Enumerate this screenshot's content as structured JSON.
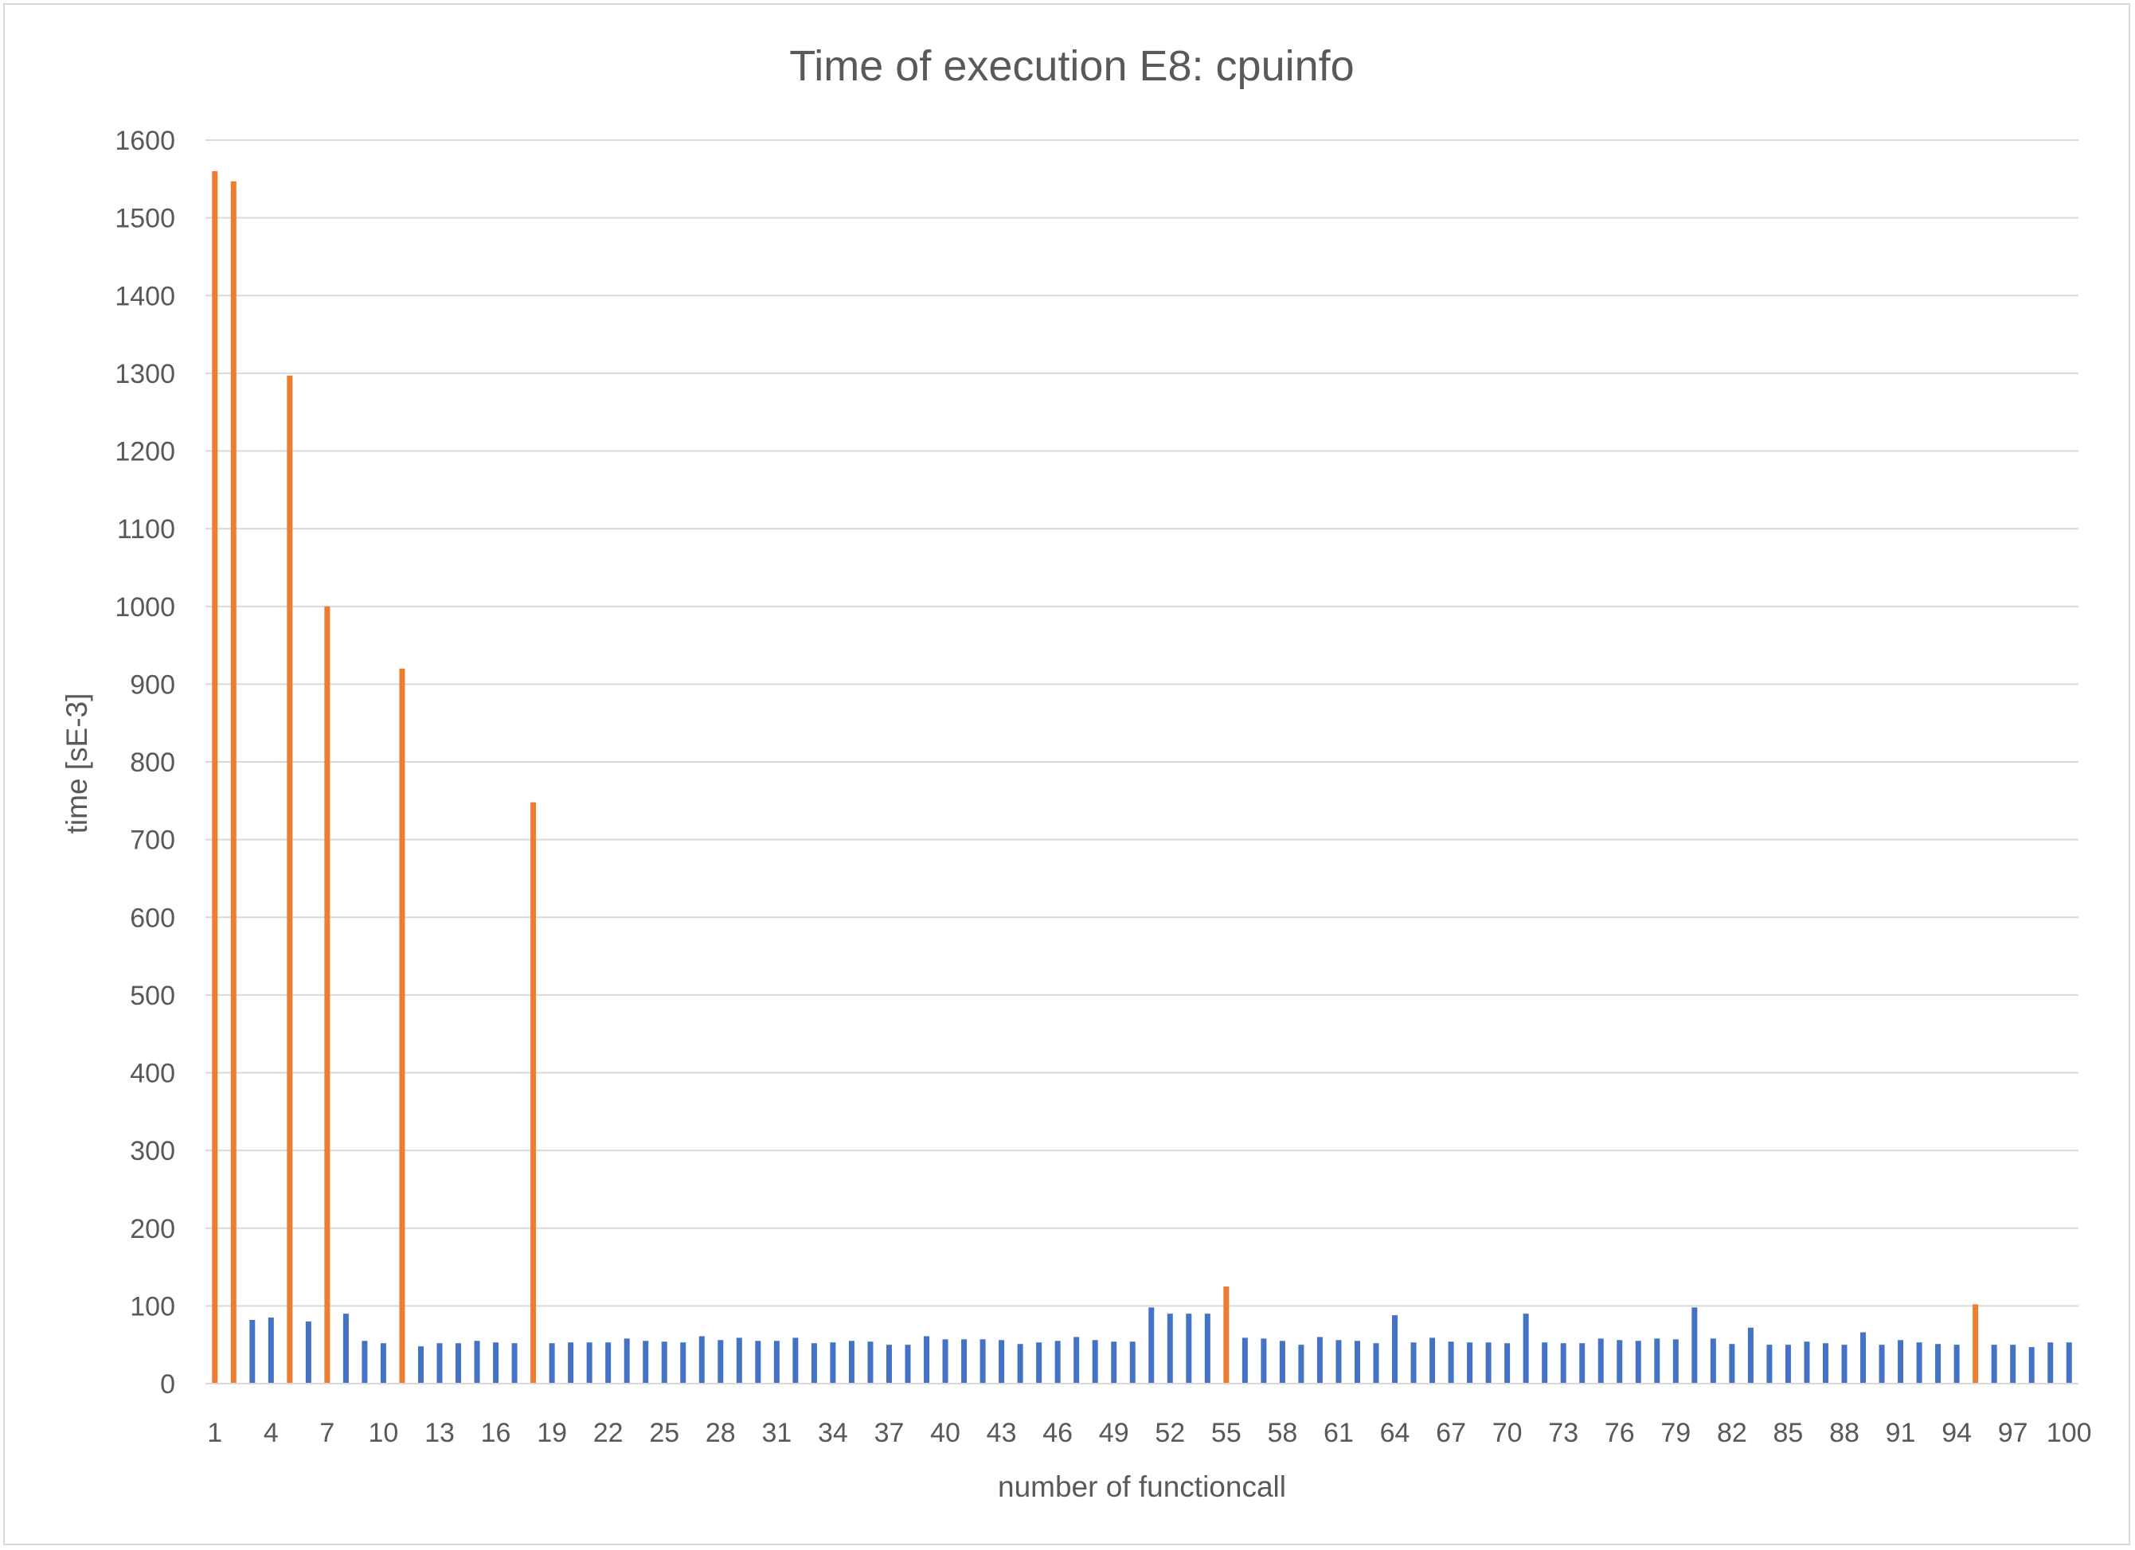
{
  "chart_data": {
    "type": "bar",
    "title": "Time of execution E8: cpuinfo",
    "xlabel": "number of functioncall",
    "ylabel": "time [sE-3]",
    "ylim": [
      0,
      1600
    ],
    "ytick_step": 100,
    "x_tick_labels": [
      "1",
      "4",
      "7",
      "10",
      "13",
      "16",
      "19",
      "22",
      "25",
      "28",
      "31",
      "34",
      "37",
      "40",
      "43",
      "46",
      "49",
      "52",
      "55",
      "58",
      "61",
      "64",
      "67",
      "70",
      "73",
      "76",
      "79",
      "82",
      "85",
      "88",
      "91",
      "94",
      "97",
      "100"
    ],
    "grid": true,
    "legend": "none",
    "colors": {
      "normal": "#4472c4",
      "highlight": "#ed7d31",
      "grid": "#d9d9d9",
      "text": "#595959"
    },
    "categories": [
      1,
      2,
      3,
      4,
      5,
      6,
      7,
      8,
      9,
      10,
      11,
      12,
      13,
      14,
      15,
      16,
      17,
      18,
      19,
      20,
      21,
      22,
      23,
      24,
      25,
      26,
      27,
      28,
      29,
      30,
      31,
      32,
      33,
      34,
      35,
      36,
      37,
      38,
      39,
      40,
      41,
      42,
      43,
      44,
      45,
      46,
      47,
      48,
      49,
      50,
      51,
      52,
      53,
      54,
      55,
      56,
      57,
      58,
      59,
      60,
      61,
      62,
      63,
      64,
      65,
      66,
      67,
      68,
      69,
      70,
      71,
      72,
      73,
      74,
      75,
      76,
      77,
      78,
      79,
      80,
      81,
      82,
      83,
      84,
      85,
      86,
      87,
      88,
      89,
      90,
      91,
      92,
      93,
      94,
      95,
      96,
      97,
      98,
      99,
      100
    ],
    "values": [
      1560,
      1547,
      82,
      85,
      1297,
      80,
      1000,
      90,
      55,
      52,
      920,
      48,
      52,
      52,
      55,
      53,
      52,
      748,
      52,
      53,
      53,
      53,
      58,
      55,
      54,
      53,
      61,
      56,
      59,
      55,
      55,
      59,
      52,
      53,
      55,
      54,
      50,
      50,
      61,
      57,
      57,
      57,
      56,
      51,
      53,
      55,
      60,
      56,
      54,
      54,
      98,
      90,
      90,
      90,
      125,
      59,
      58,
      55,
      50,
      60,
      56,
      55,
      52,
      88,
      53,
      59,
      54,
      53,
      53,
      52,
      90,
      53,
      52,
      52,
      58,
      56,
      55,
      58,
      57,
      98,
      58,
      51,
      72,
      50,
      50,
      54,
      52,
      50,
      66,
      50,
      56,
      53,
      51,
      50,
      102,
      50,
      50,
      47,
      53,
      53
    ],
    "highlight": [
      1,
      2,
      5,
      7,
      11,
      18,
      55,
      95
    ]
  }
}
